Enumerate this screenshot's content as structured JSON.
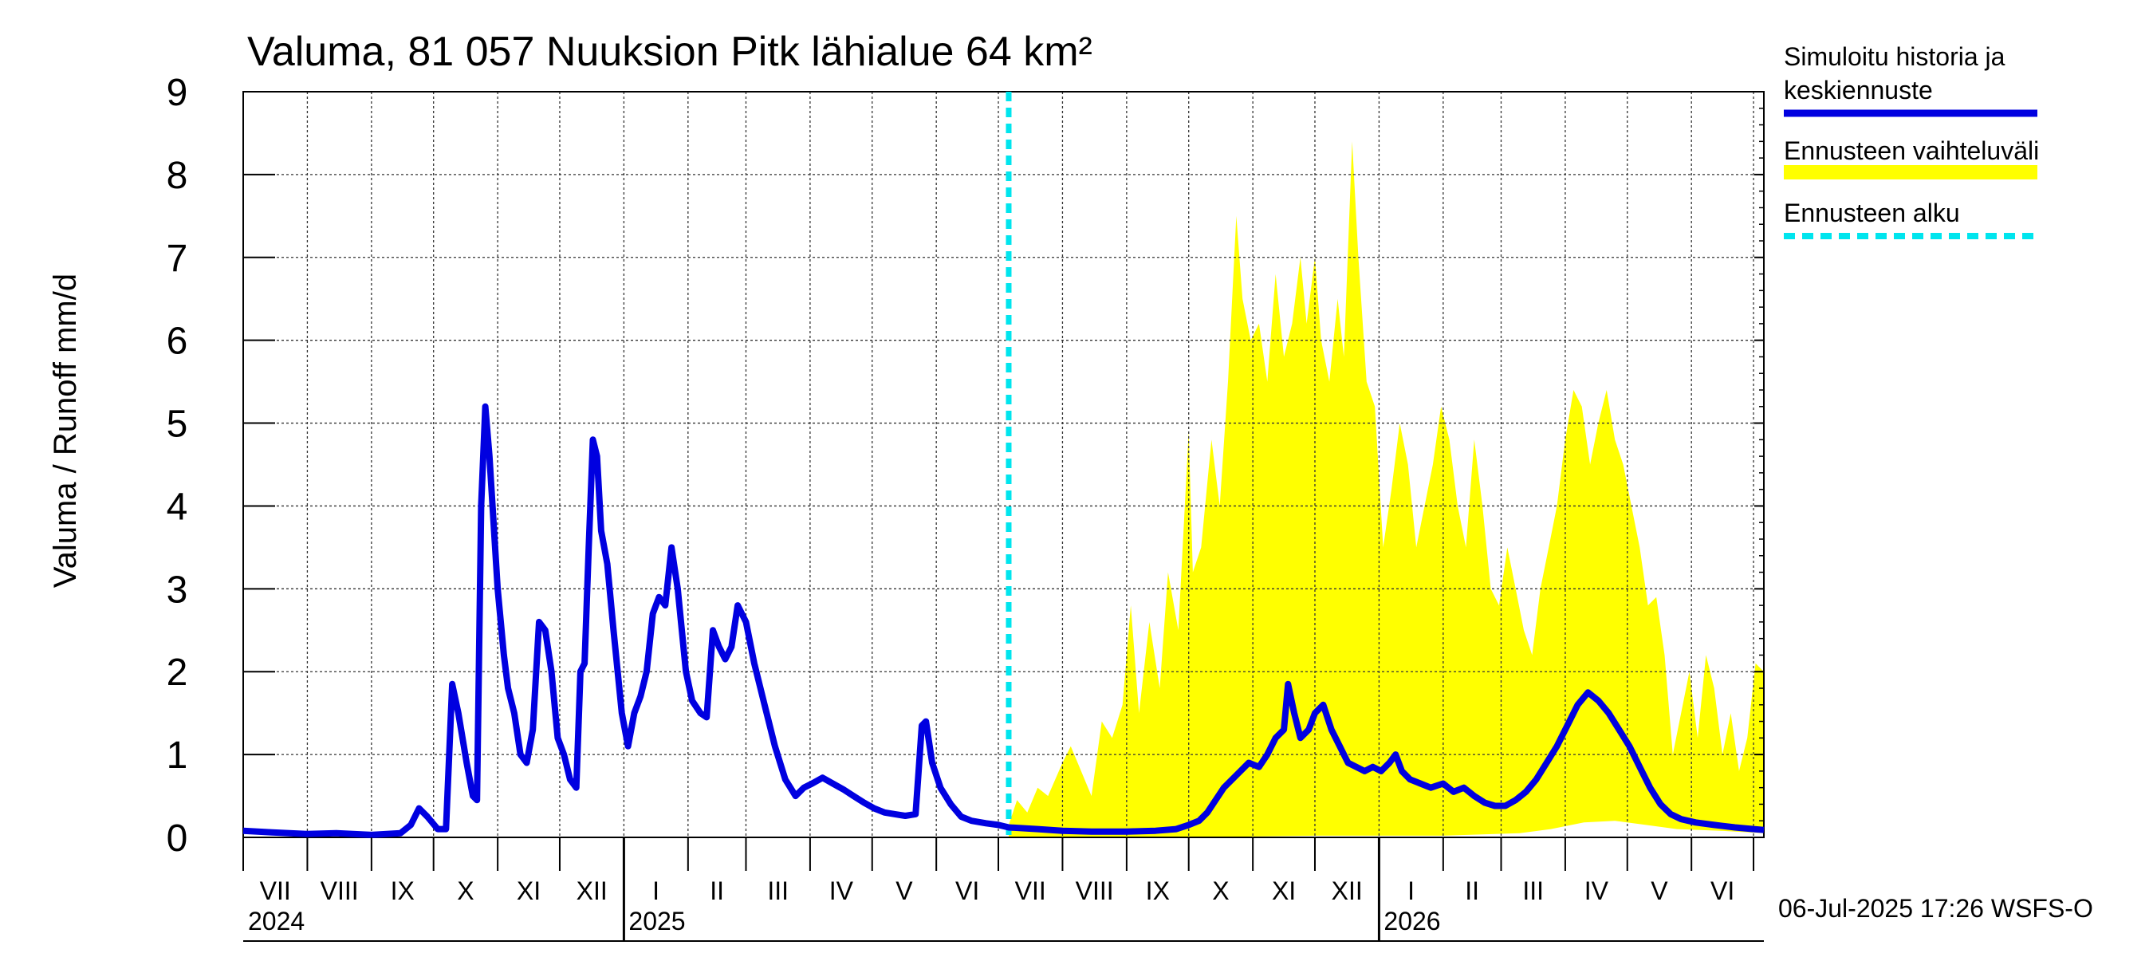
{
  "chart_data": {
    "type": "area",
    "title": "Valuma, 81 057 Nuuksion Pitk lähialue 64 km²",
    "ylabel": "Valuma / Runoff     mm/d",
    "xlabel": "",
    "ylim": [
      0,
      9
    ],
    "xlim": [
      "2024-07-01",
      "2026-07-06"
    ],
    "yticks": [
      0,
      1,
      2,
      3,
      4,
      5,
      6,
      7,
      8,
      9
    ],
    "grid": true,
    "legend_placement": "right",
    "month_labels": [
      "VII",
      "VIII",
      "IX",
      "X",
      "XI",
      "XII",
      "I",
      "II",
      "III",
      "IV",
      "V",
      "VI",
      "VII",
      "VIII",
      "IX",
      "X",
      "XI",
      "XII",
      "I",
      "II",
      "III",
      "IV",
      "V",
      "VI"
    ],
    "year_labels": [
      {
        "label": "2024",
        "date": "2024-07-01"
      },
      {
        "label": "2025",
        "date": "2025-01-01"
      },
      {
        "label": "2026",
        "date": "2026-01-01"
      }
    ],
    "forecast_start": "2025-07-06",
    "footer": "06-Jul-2025 17:26 WSFS-O",
    "legend": [
      {
        "label": "Simuloitu historia ja keskiennuste",
        "color": "#0000e0",
        "style": "line"
      },
      {
        "label": "Ennusteen vaihteluväli",
        "color": "#ffff00",
        "style": "band"
      },
      {
        "label": "Ennusteen alku",
        "color": "#00e5ee",
        "style": "dashed"
      }
    ],
    "series": [
      {
        "name": "Simuloitu historia ja keskiennuste",
        "color": "#0000e0",
        "points": [
          [
            "2024-07-01",
            0.08
          ],
          [
            "2024-07-15",
            0.06
          ],
          [
            "2024-08-01",
            0.04
          ],
          [
            "2024-08-15",
            0.05
          ],
          [
            "2024-09-01",
            0.03
          ],
          [
            "2024-09-15",
            0.05
          ],
          [
            "2024-09-20",
            0.15
          ],
          [
            "2024-09-24",
            0.35
          ],
          [
            "2024-09-28",
            0.25
          ],
          [
            "2024-10-03",
            0.1
          ],
          [
            "2024-10-07",
            0.1
          ],
          [
            "2024-10-10",
            1.85
          ],
          [
            "2024-10-13",
            1.5
          ],
          [
            "2024-10-17",
            0.9
          ],
          [
            "2024-10-20",
            0.5
          ],
          [
            "2024-10-22",
            0.45
          ],
          [
            "2024-10-24",
            4.0
          ],
          [
            "2024-10-26",
            5.2
          ],
          [
            "2024-10-28",
            4.6
          ],
          [
            "2024-11-01",
            3.0
          ],
          [
            "2024-11-04",
            2.2
          ],
          [
            "2024-11-06",
            1.8
          ],
          [
            "2024-11-09",
            1.5
          ],
          [
            "2024-11-12",
            1.0
          ],
          [
            "2024-11-15",
            0.9
          ],
          [
            "2024-11-18",
            1.3
          ],
          [
            "2024-11-21",
            2.6
          ],
          [
            "2024-11-24",
            2.5
          ],
          [
            "2024-11-27",
            2.0
          ],
          [
            "2024-11-30",
            1.2
          ],
          [
            "2024-12-03",
            1.0
          ],
          [
            "2024-12-06",
            0.7
          ],
          [
            "2024-12-09",
            0.6
          ],
          [
            "2024-12-11",
            2.0
          ],
          [
            "2024-12-13",
            2.1
          ],
          [
            "2024-12-15",
            3.5
          ],
          [
            "2024-12-17",
            4.8
          ],
          [
            "2024-12-19",
            4.6
          ],
          [
            "2024-12-21",
            3.7
          ],
          [
            "2024-12-24",
            3.3
          ],
          [
            "2024-12-27",
            2.5
          ],
          [
            "2024-12-31",
            1.5
          ],
          [
            "2025-01-03",
            1.1
          ],
          [
            "2025-01-06",
            1.5
          ],
          [
            "2025-01-09",
            1.7
          ],
          [
            "2025-01-12",
            2.0
          ],
          [
            "2025-01-15",
            2.7
          ],
          [
            "2025-01-18",
            2.9
          ],
          [
            "2025-01-21",
            2.8
          ],
          [
            "2025-01-24",
            3.5
          ],
          [
            "2025-01-27",
            3.0
          ],
          [
            "2025-01-31",
            2.0
          ],
          [
            "2025-02-03",
            1.65
          ],
          [
            "2025-02-07",
            1.5
          ],
          [
            "2025-02-10",
            1.45
          ],
          [
            "2025-02-13",
            2.5
          ],
          [
            "2025-02-16",
            2.3
          ],
          [
            "2025-02-19",
            2.15
          ],
          [
            "2025-02-22",
            2.3
          ],
          [
            "2025-02-25",
            2.8
          ],
          [
            "2025-03-01",
            2.6
          ],
          [
            "2025-03-05",
            2.1
          ],
          [
            "2025-03-10",
            1.6
          ],
          [
            "2025-03-15",
            1.1
          ],
          [
            "2025-03-20",
            0.7
          ],
          [
            "2025-03-25",
            0.5
          ],
          [
            "2025-03-29",
            0.6
          ],
          [
            "2025-04-02",
            0.65
          ],
          [
            "2025-04-07",
            0.72
          ],
          [
            "2025-04-12",
            0.65
          ],
          [
            "2025-04-17",
            0.58
          ],
          [
            "2025-04-22",
            0.5
          ],
          [
            "2025-04-27",
            0.42
          ],
          [
            "2025-05-02",
            0.35
          ],
          [
            "2025-05-07",
            0.3
          ],
          [
            "2025-05-12",
            0.28
          ],
          [
            "2025-05-17",
            0.26
          ],
          [
            "2025-05-22",
            0.28
          ],
          [
            "2025-05-25",
            1.35
          ],
          [
            "2025-05-27",
            1.4
          ],
          [
            "2025-05-30",
            0.9
          ],
          [
            "2025-06-03",
            0.6
          ],
          [
            "2025-06-08",
            0.4
          ],
          [
            "2025-06-13",
            0.25
          ],
          [
            "2025-06-18",
            0.2
          ],
          [
            "2025-06-25",
            0.17
          ],
          [
            "2025-07-01",
            0.15
          ],
          [
            "2025-07-06",
            0.12
          ],
          [
            "2025-07-20",
            0.1
          ],
          [
            "2025-08-01",
            0.08
          ],
          [
            "2025-08-15",
            0.07
          ],
          [
            "2025-09-01",
            0.07
          ],
          [
            "2025-09-15",
            0.08
          ],
          [
            "2025-09-25",
            0.1
          ],
          [
            "2025-10-01",
            0.15
          ],
          [
            "2025-10-06",
            0.2
          ],
          [
            "2025-10-10",
            0.3
          ],
          [
            "2025-10-14",
            0.45
          ],
          [
            "2025-10-18",
            0.6
          ],
          [
            "2025-10-22",
            0.7
          ],
          [
            "2025-10-26",
            0.8
          ],
          [
            "2025-10-30",
            0.9
          ],
          [
            "2025-11-04",
            0.85
          ],
          [
            "2025-11-08",
            1.0
          ],
          [
            "2025-11-12",
            1.2
          ],
          [
            "2025-11-16",
            1.3
          ],
          [
            "2025-11-18",
            1.85
          ],
          [
            "2025-11-21",
            1.5
          ],
          [
            "2025-11-24",
            1.2
          ],
          [
            "2025-11-28",
            1.3
          ],
          [
            "2025-12-01",
            1.5
          ],
          [
            "2025-12-05",
            1.6
          ],
          [
            "2025-12-09",
            1.3
          ],
          [
            "2025-12-13",
            1.1
          ],
          [
            "2025-12-17",
            0.9
          ],
          [
            "2025-12-21",
            0.85
          ],
          [
            "2025-12-25",
            0.8
          ],
          [
            "2025-12-29",
            0.85
          ],
          [
            "2026-01-02",
            0.8
          ],
          [
            "2026-01-06",
            0.9
          ],
          [
            "2026-01-09",
            1.0
          ],
          [
            "2026-01-12",
            0.8
          ],
          [
            "2026-01-16",
            0.7
          ],
          [
            "2026-01-21",
            0.65
          ],
          [
            "2026-01-26",
            0.6
          ],
          [
            "2026-02-01",
            0.65
          ],
          [
            "2026-02-06",
            0.55
          ],
          [
            "2026-02-11",
            0.6
          ],
          [
            "2026-02-16",
            0.5
          ],
          [
            "2026-02-21",
            0.42
          ],
          [
            "2026-02-26",
            0.38
          ],
          [
            "2026-03-03",
            0.38
          ],
          [
            "2026-03-08",
            0.45
          ],
          [
            "2026-03-13",
            0.55
          ],
          [
            "2026-03-18",
            0.7
          ],
          [
            "2026-03-23",
            0.9
          ],
          [
            "2026-03-28",
            1.1
          ],
          [
            "2026-04-02",
            1.35
          ],
          [
            "2026-04-07",
            1.6
          ],
          [
            "2026-04-12",
            1.75
          ],
          [
            "2026-04-17",
            1.65
          ],
          [
            "2026-04-22",
            1.5
          ],
          [
            "2026-04-27",
            1.3
          ],
          [
            "2026-05-02",
            1.1
          ],
          [
            "2026-05-07",
            0.85
          ],
          [
            "2026-05-12",
            0.6
          ],
          [
            "2026-05-17",
            0.4
          ],
          [
            "2026-05-22",
            0.28
          ],
          [
            "2026-05-27",
            0.22
          ],
          [
            "2026-06-03",
            0.18
          ],
          [
            "2026-06-12",
            0.15
          ],
          [
            "2026-06-22",
            0.12
          ],
          [
            "2026-07-01",
            0.1
          ],
          [
            "2026-07-06",
            0.09
          ]
        ]
      }
    ],
    "band": {
      "name": "Ennusteen vaihteluväli",
      "color": "#ffff00",
      "upper": [
        [
          "2025-07-06",
          0.15
        ],
        [
          "2025-07-10",
          0.45
        ],
        [
          "2025-07-15",
          0.3
        ],
        [
          "2025-07-20",
          0.6
        ],
        [
          "2025-07-25",
          0.5
        ],
        [
          "2025-08-01",
          0.9
        ],
        [
          "2025-08-05",
          1.1
        ],
        [
          "2025-08-10",
          0.8
        ],
        [
          "2025-08-15",
          0.5
        ],
        [
          "2025-08-20",
          1.4
        ],
        [
          "2025-08-25",
          1.2
        ],
        [
          "2025-08-30",
          1.6
        ],
        [
          "2025-09-03",
          2.8
        ],
        [
          "2025-09-07",
          1.5
        ],
        [
          "2025-09-12",
          2.6
        ],
        [
          "2025-09-17",
          1.8
        ],
        [
          "2025-09-21",
          3.2
        ],
        [
          "2025-09-26",
          2.5
        ],
        [
          "2025-10-01",
          4.9
        ],
        [
          "2025-10-03",
          3.2
        ],
        [
          "2025-10-07",
          3.5
        ],
        [
          "2025-10-12",
          4.8
        ],
        [
          "2025-10-16",
          4.0
        ],
        [
          "2025-10-20",
          5.5
        ],
        [
          "2025-10-24",
          7.5
        ],
        [
          "2025-10-27",
          6.5
        ],
        [
          "2025-10-31",
          6.0
        ],
        [
          "2025-11-04",
          6.2
        ],
        [
          "2025-11-08",
          5.5
        ],
        [
          "2025-11-12",
          6.8
        ],
        [
          "2025-11-16",
          5.8
        ],
        [
          "2025-11-20",
          6.2
        ],
        [
          "2025-11-24",
          7.0
        ],
        [
          "2025-11-27",
          6.2
        ],
        [
          "2025-12-01",
          7.0
        ],
        [
          "2025-12-04",
          6.0
        ],
        [
          "2025-12-08",
          5.5
        ],
        [
          "2025-12-12",
          6.5
        ],
        [
          "2025-12-15",
          5.8
        ],
        [
          "2025-12-19",
          8.4
        ],
        [
          "2025-12-22",
          7.0
        ],
        [
          "2025-12-26",
          5.5
        ],
        [
          "2025-12-30",
          5.2
        ],
        [
          "2026-01-03",
          3.5
        ],
        [
          "2026-01-07",
          4.2
        ],
        [
          "2026-01-11",
          5.0
        ],
        [
          "2026-01-15",
          4.5
        ],
        [
          "2026-01-19",
          3.5
        ],
        [
          "2026-01-23",
          4.0
        ],
        [
          "2026-01-27",
          4.5
        ],
        [
          "2026-01-31",
          5.2
        ],
        [
          "2026-02-04",
          4.8
        ],
        [
          "2026-02-08",
          4.0
        ],
        [
          "2026-02-12",
          3.5
        ],
        [
          "2026-02-16",
          4.8
        ],
        [
          "2026-02-20",
          4.0
        ],
        [
          "2026-02-24",
          3.0
        ],
        [
          "2026-02-28",
          2.8
        ],
        [
          "2026-03-04",
          3.5
        ],
        [
          "2026-03-08",
          3.0
        ],
        [
          "2026-03-12",
          2.5
        ],
        [
          "2026-03-16",
          2.2
        ],
        [
          "2026-03-20",
          3.0
        ],
        [
          "2026-03-24",
          3.5
        ],
        [
          "2026-03-28",
          4.0
        ],
        [
          "2026-04-01",
          4.8
        ],
        [
          "2026-04-05",
          5.4
        ],
        [
          "2026-04-09",
          5.2
        ],
        [
          "2026-04-13",
          4.5
        ],
        [
          "2026-04-17",
          5.0
        ],
        [
          "2026-04-21",
          5.4
        ],
        [
          "2026-04-25",
          4.8
        ],
        [
          "2026-04-29",
          4.5
        ],
        [
          "2026-05-03",
          4.0
        ],
        [
          "2026-05-07",
          3.5
        ],
        [
          "2026-05-11",
          2.8
        ],
        [
          "2026-05-15",
          2.9
        ],
        [
          "2026-05-19",
          2.2
        ],
        [
          "2026-05-23",
          1.0
        ],
        [
          "2026-05-27",
          1.5
        ],
        [
          "2026-05-31",
          2.0
        ],
        [
          "2026-06-04",
          1.2
        ],
        [
          "2026-06-08",
          2.2
        ],
        [
          "2026-06-12",
          1.8
        ],
        [
          "2026-06-16",
          1.0
        ],
        [
          "2026-06-20",
          1.5
        ],
        [
          "2026-06-24",
          0.8
        ],
        [
          "2026-06-28",
          1.2
        ],
        [
          "2026-07-02",
          2.1
        ],
        [
          "2026-07-06",
          2.0
        ]
      ],
      "lower": [
        [
          "2025-07-06",
          0.0
        ],
        [
          "2025-10-01",
          0.0
        ],
        [
          "2025-12-01",
          0.02
        ],
        [
          "2026-02-01",
          0.02
        ],
        [
          "2026-03-10",
          0.05
        ],
        [
          "2026-03-25",
          0.1
        ],
        [
          "2026-04-10",
          0.18
        ],
        [
          "2026-04-25",
          0.2
        ],
        [
          "2026-05-10",
          0.15
        ],
        [
          "2026-05-25",
          0.1
        ],
        [
          "2026-06-15",
          0.08
        ],
        [
          "2026-07-06",
          0.05
        ]
      ]
    }
  }
}
